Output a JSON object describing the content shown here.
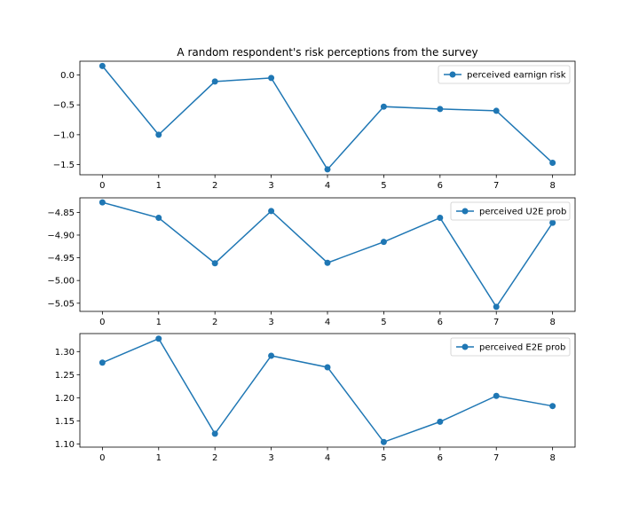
{
  "figure": {
    "title": "A random respondent's risk perceptions from the survey"
  },
  "chart_data": [
    {
      "type": "line",
      "title": "A random respondent's risk perceptions from the survey",
      "xlabel": "",
      "ylabel": "",
      "x": [
        0,
        1,
        2,
        3,
        4,
        5,
        6,
        7,
        8
      ],
      "xticks": [
        "0",
        "1",
        "2",
        "3",
        "4",
        "5",
        "6",
        "7",
        "8"
      ],
      "series": [
        {
          "name": "perceived earnign risk",
          "values": [
            0.15,
            -1.0,
            -0.11,
            -0.05,
            -1.58,
            -0.53,
            -0.57,
            -0.6,
            -1.47
          ],
          "color": "#1f77b4",
          "marker": "circle"
        }
      ],
      "ylim": [
        -1.67,
        0.23
      ],
      "yticks": [
        0.0,
        -0.5,
        -1.0,
        -1.5
      ],
      "ytick_labels": [
        "0.0",
        "−0.5",
        "−1.0",
        "−1.5"
      ],
      "legend": "top-right",
      "grid": false
    },
    {
      "type": "line",
      "title": "",
      "xlabel": "",
      "ylabel": "",
      "x": [
        0,
        1,
        2,
        3,
        4,
        5,
        6,
        7,
        8
      ],
      "xticks": [
        "0",
        "1",
        "2",
        "3",
        "4",
        "5",
        "6",
        "7",
        "8"
      ],
      "series": [
        {
          "name": "perceived U2E prob",
          "values": [
            -4.828,
            -4.862,
            -4.962,
            -4.847,
            -4.961,
            -4.915,
            -4.862,
            -5.058,
            -4.873
          ],
          "color": "#1f77b4",
          "marker": "circle"
        }
      ],
      "ylim": [
        -5.068,
        -4.818
      ],
      "yticks": [
        -4.85,
        -4.9,
        -4.95,
        -5.0,
        -5.05
      ],
      "ytick_labels": [
        "−4.85",
        "−4.90",
        "−4.95",
        "−5.00",
        "−5.05"
      ],
      "legend": "top-right",
      "grid": false
    },
    {
      "type": "line",
      "title": "",
      "xlabel": "",
      "ylabel": "",
      "x": [
        0,
        1,
        2,
        3,
        4,
        5,
        6,
        7,
        8
      ],
      "xticks": [
        "0",
        "1",
        "2",
        "3",
        "4",
        "5",
        "6",
        "7",
        "8"
      ],
      "series": [
        {
          "name": "perceived E2E prob",
          "values": [
            1.276,
            1.328,
            1.122,
            1.291,
            1.266,
            1.104,
            1.148,
            1.204,
            1.182
          ],
          "color": "#1f77b4",
          "marker": "circle"
        }
      ],
      "ylim": [
        1.093,
        1.339
      ],
      "yticks": [
        1.1,
        1.15,
        1.2,
        1.25,
        1.3
      ],
      "ytick_labels": [
        "1.10",
        "1.15",
        "1.20",
        "1.25",
        "1.30"
      ],
      "legend": "top-right",
      "grid": false
    }
  ]
}
